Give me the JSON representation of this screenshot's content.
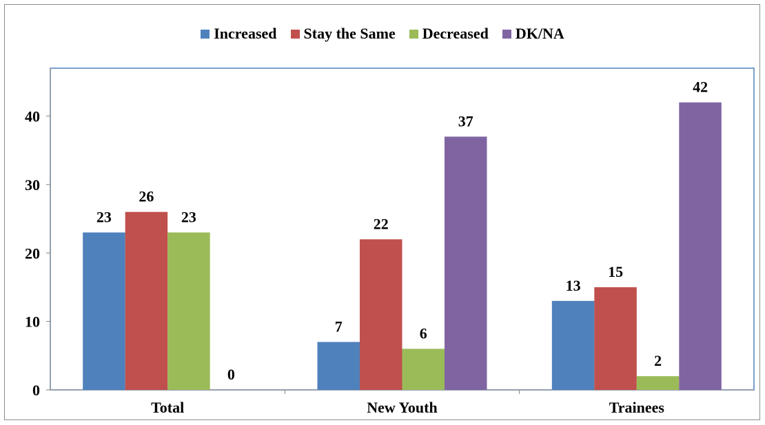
{
  "chart_data": {
    "type": "bar",
    "categories": [
      "Total",
      "New Youth",
      "Trainees"
    ],
    "series": [
      {
        "name": "Increased",
        "color": "#4F81BD",
        "values": [
          23,
          7,
          13
        ]
      },
      {
        "name": "Stay the Same",
        "color": "#C0504D",
        "values": [
          26,
          22,
          15
        ]
      },
      {
        "name": "Decreased",
        "color": "#9BBB59",
        "values": [
          23,
          6,
          2
        ]
      },
      {
        "name": "DK/NA",
        "color": "#8064A2",
        "values": [
          0,
          37,
          42
        ]
      }
    ],
    "ylim": [
      0,
      47
    ],
    "yticks": [
      0,
      10,
      20,
      30,
      40
    ],
    "grid": false,
    "legend_position": "top",
    "plot_border_color": "#4F81BD",
    "title": "",
    "xlabel": "",
    "ylabel": ""
  }
}
